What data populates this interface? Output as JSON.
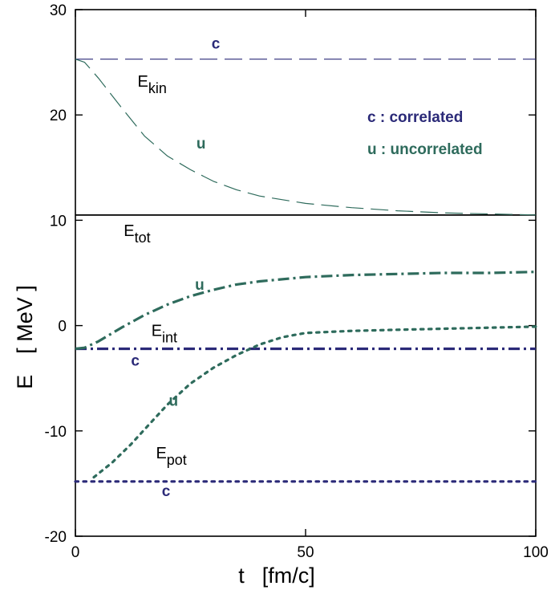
{
  "chart_data": {
    "type": "line",
    "xlabel": "t",
    "xlabel_unit": "[fm/c]",
    "ylabel": "E",
    "ylabel_unit": "[ MeV ]",
    "xlim": [
      0,
      100
    ],
    "ylim": [
      -20,
      30
    ],
    "x_ticks": [
      "0",
      "50",
      "100"
    ],
    "y_ticks": [
      "-20",
      "-10",
      "0",
      "10",
      "20",
      "30"
    ],
    "grid": false,
    "legend": {
      "position": "top-right",
      "entries": [
        {
          "text": "c : correlated",
          "color": "#2b2a78"
        },
        {
          "text": "u : uncorrelated",
          "color": "#2e6b5c"
        }
      ]
    },
    "separator_line_y": 10.5,
    "labels": {
      "E_kin": {
        "main": "E",
        "sub": "kin"
      },
      "E_tot": {
        "main": "E",
        "sub": "tot"
      },
      "E_int": {
        "main": "E",
        "sub": "int"
      },
      "E_pot": {
        "main": "E",
        "sub": "pot"
      }
    },
    "markers": {
      "c": "c",
      "u": "u"
    },
    "series": [
      {
        "id": "ekin-c",
        "color": "#2b2a78",
        "dash": "long-dash",
        "x": [
          0,
          100
        ],
        "y": [
          25.3,
          25.3
        ]
      },
      {
        "id": "ekin-u",
        "color": "#2e6b5c",
        "dash": "long-dash",
        "x": [
          0,
          2,
          5,
          10,
          15,
          20,
          25,
          30,
          35,
          40,
          50,
          60,
          70,
          80,
          90,
          100
        ],
        "y": [
          25.3,
          25.0,
          23.5,
          20.7,
          18.0,
          16.1,
          14.8,
          13.7,
          12.9,
          12.3,
          11.6,
          11.2,
          10.9,
          10.7,
          10.6,
          10.5
        ]
      },
      {
        "id": "eint-c",
        "color": "#2b2a78",
        "dash": "dash-dot",
        "x": [
          0,
          100
        ],
        "y": [
          -2.2,
          -2.2
        ]
      },
      {
        "id": "eint-u",
        "color": "#2e6b5c",
        "dash": "dash-dot",
        "x": [
          0,
          2,
          5,
          10,
          15,
          20,
          25,
          30,
          35,
          40,
          50,
          60,
          70,
          80,
          90,
          100
        ],
        "y": [
          -2.2,
          -2.1,
          -1.5,
          -0.2,
          1.0,
          2.0,
          2.8,
          3.4,
          3.9,
          4.2,
          4.6,
          4.8,
          4.9,
          5.0,
          5.0,
          5.1
        ]
      },
      {
        "id": "epot-c",
        "color": "#2b2a78",
        "dash": "dot",
        "x": [
          0,
          100
        ],
        "y": [
          -14.8,
          -14.8
        ]
      },
      {
        "id": "epot-u",
        "color": "#2e6b5c",
        "dash": "dot",
        "x": [
          4,
          8,
          12,
          16,
          20,
          25,
          30,
          35,
          40,
          45,
          50,
          60,
          70,
          80,
          90,
          100
        ],
        "y": [
          -14.4,
          -13.0,
          -11.3,
          -9.4,
          -7.5,
          -5.5,
          -4.0,
          -2.8,
          -1.8,
          -1.1,
          -0.7,
          -0.5,
          -0.4,
          -0.3,
          -0.2,
          -0.1
        ]
      }
    ],
    "annotations": [
      {
        "id": "lbl-ekin",
        "text_key": "E_kin",
        "x": 13.5,
        "y": 22.7,
        "kind": "energy"
      },
      {
        "id": "lbl-etot",
        "text_key": "E_tot",
        "x": 10.5,
        "y": 8.5,
        "kind": "energy"
      },
      {
        "id": "lbl-eint",
        "text_key": "E_int",
        "x": 16.5,
        "y": -1.0,
        "kind": "energy"
      },
      {
        "id": "lbl-epot",
        "text_key": "E_pot",
        "x": 17.5,
        "y": -12.6,
        "kind": "energy"
      },
      {
        "id": "mk-ekin-c",
        "text_key": "c",
        "x": 30.5,
        "y": 26.3,
        "color": "#2b2a78"
      },
      {
        "id": "mk-ekin-u",
        "text_key": "u",
        "x": 27.3,
        "y": 16.8,
        "color": "#2e6b5c"
      },
      {
        "id": "mk-eint-u",
        "text_key": "u",
        "x": 27.0,
        "y": 3.4,
        "color": "#2e6b5c"
      },
      {
        "id": "mk-eint-c",
        "text_key": "c",
        "x": 13.0,
        "y": -3.8,
        "color": "#2b2a78"
      },
      {
        "id": "mk-epot-u",
        "text_key": "u",
        "x": 21.3,
        "y": -7.6,
        "color": "#2e6b5c"
      },
      {
        "id": "mk-epot-c",
        "text_key": "c",
        "x": 19.7,
        "y": -16.2,
        "color": "#2b2a78"
      }
    ]
  }
}
